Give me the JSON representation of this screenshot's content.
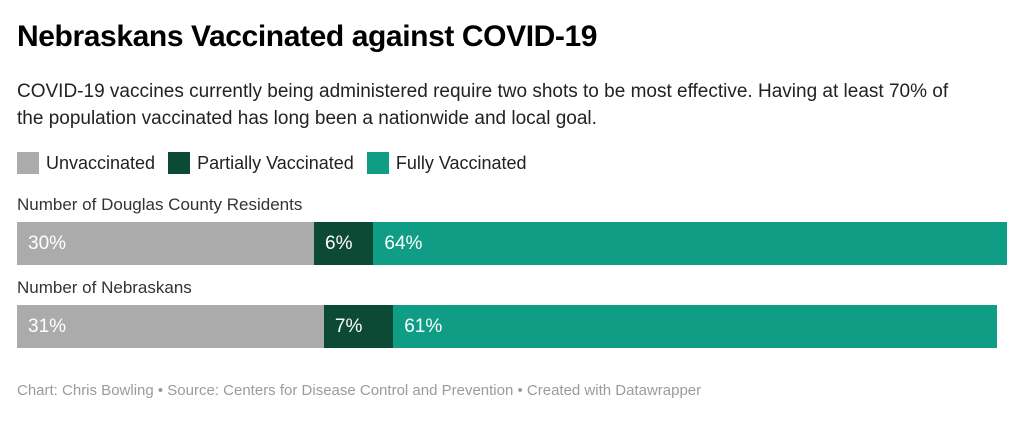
{
  "header": {
    "title": "Nebraskans Vaccinated against COVID-19",
    "description": "COVID-19 vaccines currently being administered require two shots to be most effective. Having at least 70% of the population vaccinated has long been a nationwide and local goal."
  },
  "legend": [
    {
      "label": "Unvaccinated",
      "color": "#ababab"
    },
    {
      "label": "Partially Vaccinated",
      "color": "#0d4a35"
    },
    {
      "label": "Fully Vaccinated",
      "color": "#0f9e85"
    }
  ],
  "chart_data": {
    "type": "bar",
    "stacked": true,
    "orientation": "horizontal",
    "unit": "%",
    "xlim": [
      0,
      100
    ],
    "legend_position": "top",
    "grid": false,
    "categories": [
      "Number of Douglas County Residents",
      "Number of Nebraskans"
    ],
    "series": [
      {
        "name": "Unvaccinated",
        "color": "#ababab",
        "values": [
          30,
          31
        ]
      },
      {
        "name": "Partially Vaccinated",
        "color": "#0d4a35",
        "values": [
          6,
          7
        ]
      },
      {
        "name": "Fully Vaccinated",
        "color": "#0f9e85",
        "values": [
          64,
          61
        ]
      }
    ],
    "rows": [
      {
        "category": "Number of Douglas County Residents",
        "segments": [
          {
            "name": "Unvaccinated",
            "label": "30%",
            "value": 30
          },
          {
            "name": "Partially Vaccinated",
            "label": "6%",
            "value": 6
          },
          {
            "name": "Fully Vaccinated",
            "label": "64%",
            "value": 64
          }
        ]
      },
      {
        "category": "Number of Nebraskans",
        "segments": [
          {
            "name": "Unvaccinated",
            "label": "31%",
            "value": 31
          },
          {
            "name": "Partially Vaccinated",
            "label": "7%",
            "value": 7
          },
          {
            "name": "Fully Vaccinated",
            "label": "61%",
            "value": 61
          }
        ]
      }
    ]
  },
  "footer": {
    "text": "Chart: Chris Bowling • Source: Centers for Disease Control and Prevention • Created with Datawrapper"
  }
}
